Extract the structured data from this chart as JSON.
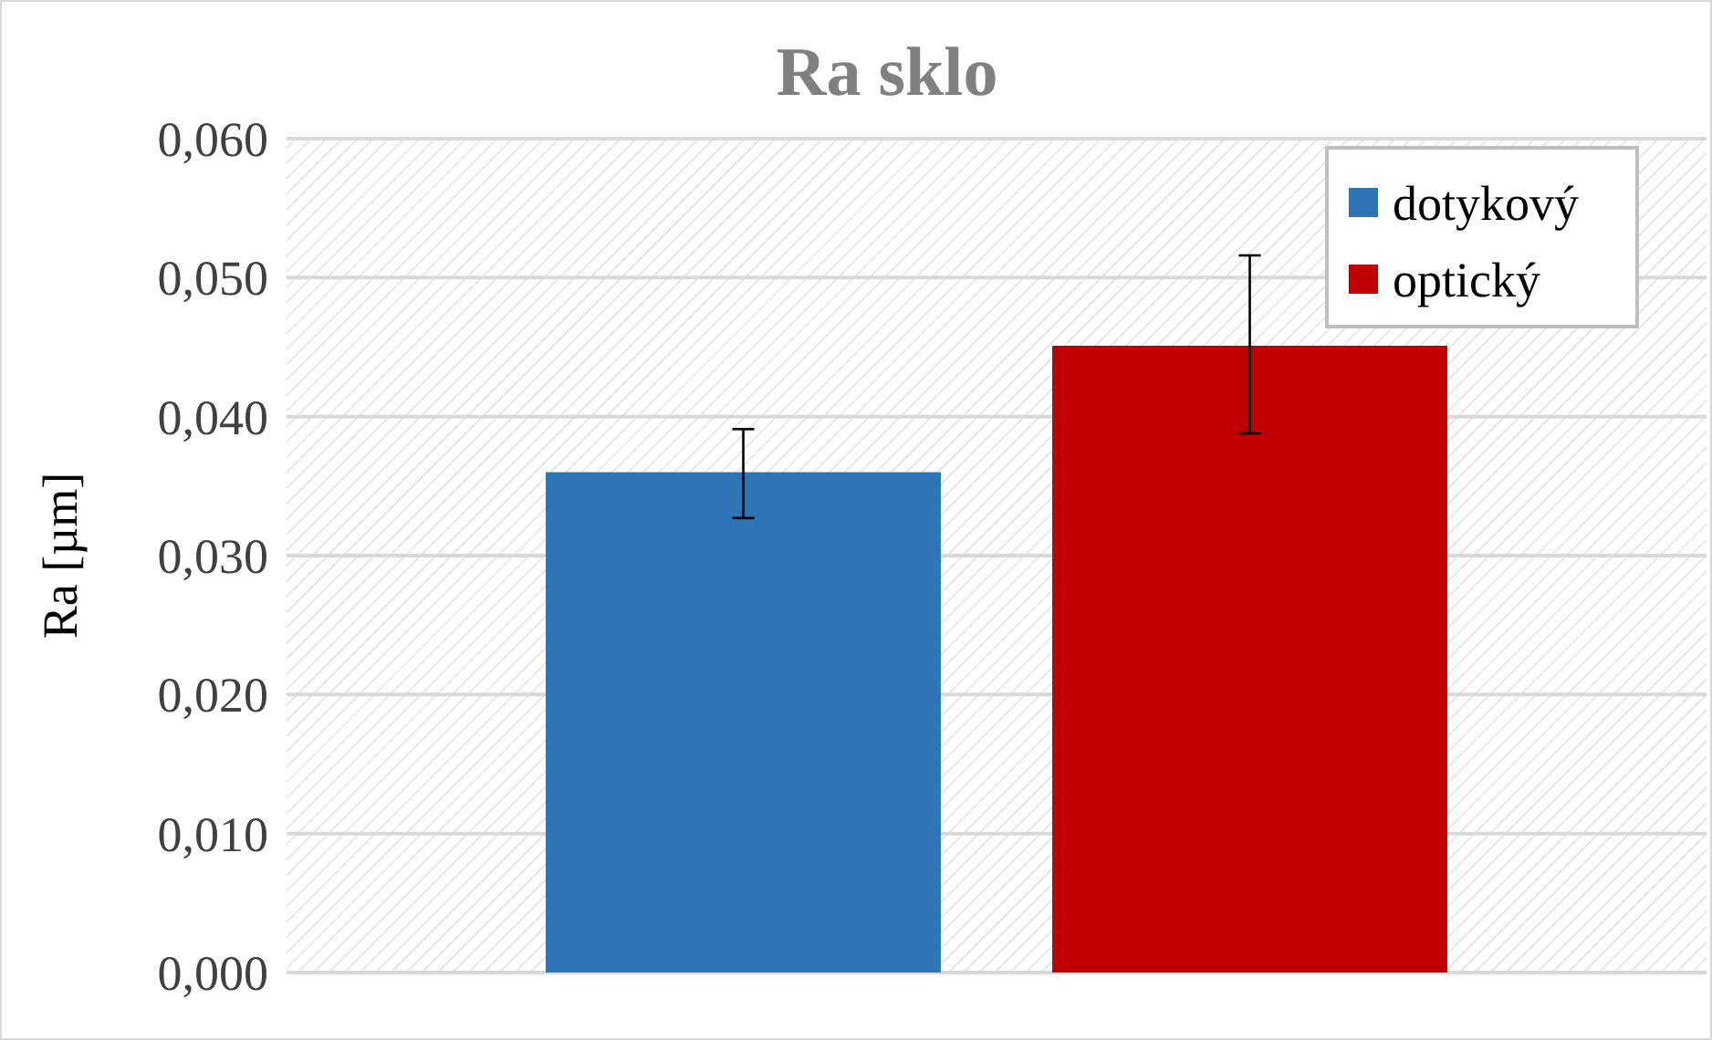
{
  "chart_data": {
    "type": "bar",
    "title": "Ra sklo",
    "ylabel": "Ra [µm]",
    "categories": [
      null
    ],
    "series": [
      {
        "name": "dotykový",
        "color": "#2e75b6",
        "values": [
          0.036
        ],
        "errors": [
          [
            0.0327,
            0.0391
          ]
        ]
      },
      {
        "name": "optický",
        "color": "#c00000",
        "values": [
          0.0451
        ],
        "errors": [
          [
            0.0388,
            0.0516
          ]
        ]
      }
    ],
    "ylim": [
      0,
      0.06
    ],
    "yticks": [
      {
        "value": 0,
        "label": "0,000"
      },
      {
        "value": 0.01,
        "label": "0,010"
      },
      {
        "value": 0.02,
        "label": "0,020"
      },
      {
        "value": 0.03,
        "label": "0,030"
      },
      {
        "value": 0.04,
        "label": "0,040"
      },
      {
        "value": 0.05,
        "label": "0,050"
      },
      {
        "value": 0.06,
        "label": "0,060"
      }
    ],
    "grid": "y",
    "legend": "top right"
  }
}
